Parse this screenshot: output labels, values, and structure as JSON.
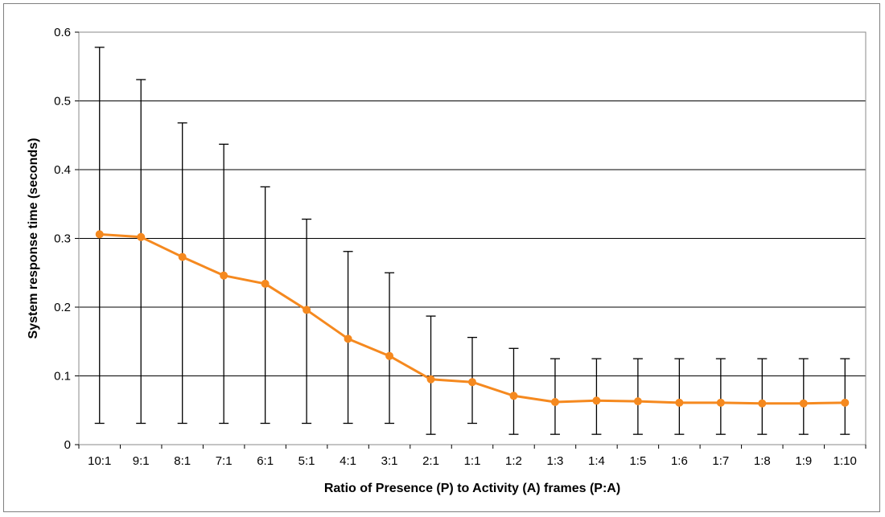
{
  "colors": {
    "line": "#f5891f",
    "marker": "#f5891f",
    "error_bar": "#000000",
    "grid": "#000000",
    "plot_border": "#888888"
  },
  "chart_data": {
    "type": "line",
    "title": "",
    "xlabel": "Ratio of Presence (P) to Activity (A) frames (P:A)",
    "ylabel": "System response time (seconds)",
    "ylim": [
      0,
      0.6
    ],
    "yticks": [
      0,
      0.1,
      0.2,
      0.3,
      0.4,
      0.5,
      0.6
    ],
    "ytick_labels": [
      "0",
      "0.1",
      "0.2",
      "0.3",
      "0.4",
      "0.5",
      "0.6"
    ],
    "grid": "horizontal major gridlines",
    "legend": "none",
    "categories": [
      "10:1",
      "9:1",
      "8:1",
      "7:1",
      "6:1",
      "5:1",
      "4:1",
      "3:1",
      "2:1",
      "1:1",
      "1:2",
      "1:3",
      "1:4",
      "1:5",
      "1:6",
      "1:7",
      "1:8",
      "1:9",
      "1:10"
    ],
    "series": [
      {
        "values": [
          0.306,
          0.302,
          0.273,
          0.246,
          0.234,
          0.196,
          0.154,
          0.129,
          0.095,
          0.091,
          0.071,
          0.062,
          0.064,
          0.063,
          0.061,
          0.061,
          0.06,
          0.06,
          0.061
        ],
        "error_high": [
          0.578,
          0.531,
          0.468,
          0.437,
          0.375,
          0.328,
          0.281,
          0.25,
          0.187,
          0.156,
          0.14,
          0.125,
          0.125,
          0.125,
          0.125,
          0.125,
          0.125,
          0.125,
          0.125
        ],
        "error_low": [
          0.031,
          0.031,
          0.031,
          0.031,
          0.031,
          0.031,
          0.031,
          0.031,
          0.015,
          0.031,
          0.015,
          0.015,
          0.015,
          0.015,
          0.015,
          0.015,
          0.015,
          0.015,
          0.015
        ]
      }
    ]
  }
}
